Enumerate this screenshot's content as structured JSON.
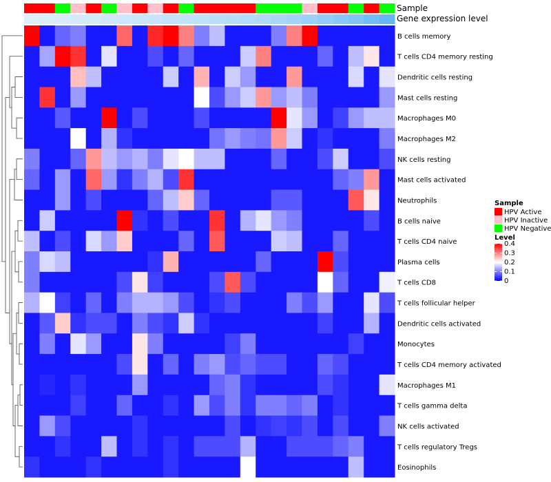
{
  "chart_data": {
    "type": "heatmap",
    "annotations": {
      "sample_title": "Sample",
      "gene_title": "Gene expression level"
    },
    "sample_groups": [
      {
        "name": "HPV Active",
        "color": "#ff0000"
      },
      {
        "name": "HPV Inactive",
        "color": "#ffc0cb"
      },
      {
        "name": "HPV Negative",
        "color": "#00ff00"
      }
    ],
    "sample_annotation": [
      0,
      0,
      2,
      1,
      0,
      2,
      1,
      0,
      1,
      0,
      2,
      0,
      0,
      0,
      0,
      2,
      2,
      2,
      1,
      0,
      0,
      2,
      0,
      2
    ],
    "gene_expression_annotation": [
      0.02,
      0.04,
      0.06,
      0.08,
      0.1,
      0.12,
      0.14,
      0.16,
      0.18,
      0.2,
      0.22,
      0.24,
      0.27,
      0.3,
      0.33,
      0.36,
      0.4,
      0.45,
      0.5,
      0.56,
      0.63,
      0.7,
      0.8,
      0.9
    ],
    "gene_color_low": "#e0f0fb",
    "gene_color_high": "#56b0f5",
    "rows": [
      "B cells memory",
      "T cells CD4 memory resting",
      "Dendritic cells resting",
      "Mast cells resting",
      "Macrophages M0",
      "Macrophages M2",
      "NK cells resting",
      "Mast cells activated",
      "Neutrophils",
      "B cells naive",
      "T cells CD4 naive",
      "Plasma cells",
      "T cells CD8",
      "T cells follicular helper",
      "Dendritic cells activated",
      "Monocytes",
      "T cells CD4 memory activated",
      "Macrophages M1",
      "T cells gamma delta",
      "NK cells activated",
      "T cells regulatory  Tregs",
      "Eosinophils"
    ],
    "matrix": [
      [
        0.4,
        0.02,
        0.08,
        0.1,
        0.02,
        0.02,
        0.32,
        0.02,
        0.37,
        0.4,
        0.3,
        0.1,
        0.15,
        0.02,
        0.02,
        0.02,
        0.1,
        0.3,
        0.4,
        0.02,
        0.02,
        0.02,
        0.02,
        0.02
      ],
      [
        0.02,
        0.13,
        0.4,
        0.36,
        0.02,
        0.18,
        0.02,
        0.02,
        0.06,
        0.02,
        0.08,
        0.02,
        0.02,
        0.02,
        0.16,
        0.3,
        0.02,
        0.02,
        0.02,
        0.08,
        0.02,
        0.15,
        0.22,
        0.02
      ],
      [
        0.02,
        0.02,
        0.02,
        0.25,
        0.15,
        0.02,
        0.02,
        0.02,
        0.02,
        0.16,
        0.02,
        0.26,
        0.02,
        0.16,
        0.12,
        0.02,
        0.02,
        0.28,
        0.02,
        0.02,
        0.02,
        0.17,
        0.02,
        0.18
      ],
      [
        0.02,
        0.36,
        0.02,
        0.12,
        0.02,
        0.02,
        0.02,
        0.02,
        0.02,
        0.02,
        0.02,
        0.2,
        0.06,
        0.12,
        0.16,
        0.28,
        0.12,
        0.15,
        0.1,
        0.02,
        0.02,
        0.02,
        0.02,
        0.12
      ],
      [
        0.02,
        0.02,
        0.07,
        0.02,
        0.02,
        0.4,
        0.02,
        0.06,
        0.02,
        0.02,
        0.02,
        0.06,
        0.02,
        0.02,
        0.02,
        0.02,
        0.4,
        0.18,
        0.12,
        0.02,
        0.05,
        0.12,
        0.15,
        0.15
      ],
      [
        0.02,
        0.02,
        0.02,
        0.2,
        0.02,
        0.14,
        0.04,
        0.02,
        0.02,
        0.02,
        0.02,
        0.02,
        0.09,
        0.12,
        0.1,
        0.09,
        0.28,
        0.16,
        0.02,
        0.04,
        0.02,
        0.02,
        0.02,
        0.1
      ],
      [
        0.1,
        0.02,
        0.02,
        0.08,
        0.28,
        0.15,
        0.12,
        0.14,
        0.1,
        0.18,
        0.2,
        0.15,
        0.15,
        0.02,
        0.02,
        0.02,
        0.08,
        0.02,
        0.02,
        0.06,
        0.16,
        0.02,
        0.02,
        0.06
      ],
      [
        0.08,
        0.02,
        0.12,
        0.02,
        0.32,
        0.12,
        0.04,
        0.1,
        0.14,
        0.06,
        0.36,
        0.02,
        0.02,
        0.02,
        0.02,
        0.02,
        0.02,
        0.02,
        0.02,
        0.02,
        0.08,
        0.1,
        0.28,
        0.02
      ],
      [
        0.02,
        0.02,
        0.12,
        0.02,
        0.06,
        0.02,
        0.02,
        0.02,
        0.08,
        0.15,
        0.24,
        0.08,
        0.02,
        0.02,
        0.02,
        0.02,
        0.07,
        0.07,
        0.02,
        0.02,
        0.02,
        0.33,
        0.22,
        0.02
      ],
      [
        0.02,
        0.16,
        0.02,
        0.02,
        0.02,
        0.02,
        0.4,
        0.04,
        0.02,
        0.06,
        0.02,
        0.02,
        0.36,
        0.02,
        0.14,
        0.18,
        0.12,
        0.1,
        0.02,
        0.02,
        0.02,
        0.02,
        0.06,
        0.02
      ],
      [
        0.15,
        0.02,
        0.06,
        0.02,
        0.17,
        0.12,
        0.24,
        0.02,
        0.02,
        0.02,
        0.08,
        0.02,
        0.33,
        0.02,
        0.02,
        0.02,
        0.16,
        0.15,
        0.02,
        0.02,
        0.08,
        0.02,
        0.02,
        0.02
      ],
      [
        0.1,
        0.17,
        0.15,
        0.02,
        0.02,
        0.02,
        0.02,
        0.02,
        0.04,
        0.26,
        0.02,
        0.02,
        0.02,
        0.02,
        0.02,
        0.08,
        0.02,
        0.02,
        0.02,
        0.4,
        0.06,
        0.02,
        0.02,
        0.02
      ],
      [
        0.1,
        0.02,
        0.02,
        0.02,
        0.02,
        0.02,
        0.06,
        0.22,
        0.05,
        0.02,
        0.02,
        0.02,
        0.06,
        0.33,
        0.06,
        0.02,
        0.02,
        0.02,
        0.02,
        0.2,
        0.08,
        0.02,
        0.02,
        0.19
      ],
      [
        0.14,
        0.2,
        0.05,
        0.02,
        0.08,
        0.02,
        0.1,
        0.14,
        0.14,
        0.12,
        0.06,
        0.02,
        0.04,
        0.06,
        0.02,
        0.02,
        0.02,
        0.1,
        0.06,
        0.12,
        0.02,
        0.02,
        0.18,
        0.06
      ],
      [
        0.02,
        0.07,
        0.24,
        0.04,
        0.06,
        0.06,
        0.02,
        0.1,
        0.06,
        0.04,
        0.16,
        0.04,
        0.02,
        0.02,
        0.02,
        0.02,
        0.02,
        0.02,
        0.02,
        0.05,
        0.02,
        0.02,
        0.14,
        0.02
      ],
      [
        0.02,
        0.1,
        0.02,
        0.18,
        0.12,
        0.02,
        0.02,
        0.22,
        0.1,
        0.02,
        0.02,
        0.02,
        0.02,
        0.05,
        0.1,
        0.02,
        0.02,
        0.02,
        0.02,
        0.02,
        0.02,
        0.05,
        0.02,
        0.02
      ],
      [
        0.02,
        0.02,
        0.02,
        0.02,
        0.02,
        0.02,
        0.06,
        0.22,
        0.02,
        0.08,
        0.02,
        0.1,
        0.12,
        0.06,
        0.08,
        0.06,
        0.06,
        0.02,
        0.02,
        0.08,
        0.06,
        0.02,
        0.02,
        0.02
      ],
      [
        0.02,
        0.03,
        0.02,
        0.04,
        0.02,
        0.02,
        0.02,
        0.12,
        0.02,
        0.02,
        0.02,
        0.02,
        0.08,
        0.1,
        0.04,
        0.02,
        0.02,
        0.02,
        0.02,
        0.06,
        0.04,
        0.02,
        0.02,
        0.18
      ],
      [
        0.02,
        0.02,
        0.02,
        0.05,
        0.02,
        0.02,
        0.08,
        0.02,
        0.02,
        0.04,
        0.02,
        0.12,
        0.06,
        0.1,
        0.04,
        0.1,
        0.1,
        0.08,
        0.1,
        0.02,
        0.04,
        0.02,
        0.02,
        0.02
      ],
      [
        0.02,
        0.12,
        0.06,
        0.02,
        0.02,
        0.02,
        0.02,
        0.04,
        0.02,
        0.02,
        0.02,
        0.02,
        0.02,
        0.06,
        0.02,
        0.04,
        0.05,
        0.04,
        0.06,
        0.02,
        0.06,
        0.02,
        0.02,
        0.1
      ],
      [
        0.02,
        0.02,
        0.04,
        0.02,
        0.02,
        0.15,
        0.02,
        0.04,
        0.02,
        0.04,
        0.02,
        0.06,
        0.06,
        0.06,
        0.14,
        0.02,
        0.02,
        0.06,
        0.06,
        0.06,
        0.08,
        0.1,
        0.02,
        0.02
      ],
      [
        0.04,
        0.02,
        0.02,
        0.02,
        0.04,
        0.02,
        0.02,
        0.02,
        0.02,
        0.04,
        0.02,
        0.02,
        0.02,
        0.02,
        0.2,
        0.02,
        0.02,
        0.02,
        0.02,
        0.02,
        0.02,
        0.15,
        0.02,
        0.02
      ]
    ],
    "color_scale": {
      "min": 0,
      "max": 0.4,
      "low_color": "#0000ff",
      "mid_color": "#ffffff",
      "high_color": "#ff0000",
      "mid_value": 0.2
    },
    "legend": {
      "sample_title": "Sample",
      "level_title": "Level",
      "level_ticks": [
        "0.4",
        "0.3",
        "0.2",
        "0.1",
        "0"
      ],
      "level_tick_values": [
        0.4,
        0.3,
        0.2,
        0.1,
        0
      ]
    }
  }
}
